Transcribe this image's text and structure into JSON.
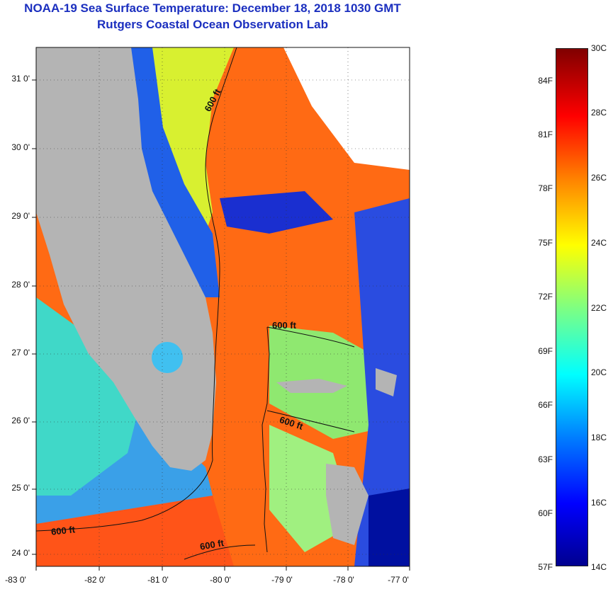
{
  "header": {
    "title_line1": "NOAA-19 Sea Surface Temperature:  December 18, 2018 1030 GMT",
    "title_line2": "Rutgers Coastal Ocean Observation Lab"
  },
  "map": {
    "lat_labels": [
      "31 0'",
      "30 0'",
      "29 0'",
      "28 0'",
      "27 0'",
      "26 0'",
      "25 0'",
      "24 0'"
    ],
    "lon_labels": [
      "-83 0'",
      "-82 0'",
      "-81 0'",
      "-80 0'",
      "-79 0'",
      "-78 0'",
      "-77 0'"
    ],
    "contour_labels": [
      "600 ft",
      "600 ft",
      "600 ft",
      "600 ft",
      "600 ft"
    ],
    "land_color": "#b4b4b4",
    "no_data_color": "#ffffff"
  },
  "colorbar": {
    "celsius_labels": [
      "30C",
      "28C",
      "26C",
      "24C",
      "22C",
      "20C",
      "18C",
      "16C",
      "14C"
    ],
    "fahrenheit_labels": [
      "84F",
      "81F",
      "78F",
      "75F",
      "72F",
      "69F",
      "66F",
      "63F",
      "60F",
      "57F"
    ],
    "colors": [
      "#00008f",
      "#0000ff",
      "#0080ff",
      "#00ffff",
      "#80ff80",
      "#ffff00",
      "#ff8000",
      "#ff0000",
      "#800000"
    ]
  }
}
